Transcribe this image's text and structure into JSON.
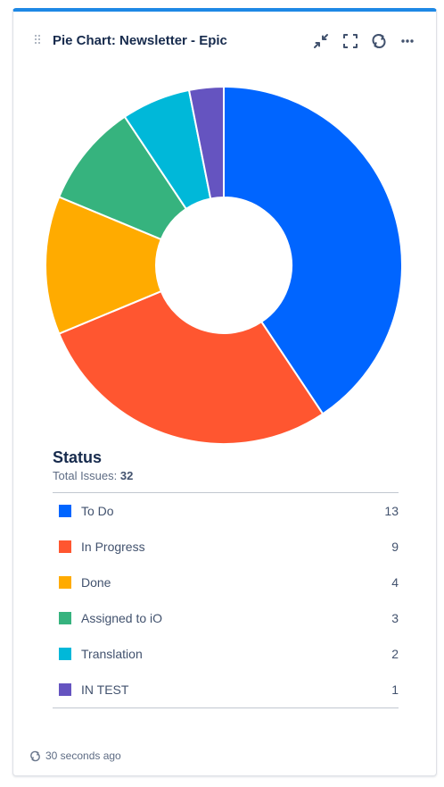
{
  "gadget": {
    "title": "Pie Chart: Newsletter - Epic",
    "actions": [
      {
        "name": "minimize-icon"
      },
      {
        "name": "fullscreen-icon"
      },
      {
        "name": "refresh-icon"
      },
      {
        "name": "more-icon"
      }
    ]
  },
  "chart_data": {
    "type": "pie",
    "style": "donut",
    "categories": [
      "To Do",
      "In Progress",
      "Done",
      "Assigned to iO",
      "Translation",
      "IN TEST"
    ],
    "values": [
      13,
      9,
      4,
      3,
      2,
      1
    ],
    "colors": [
      "#0065ff",
      "#ff5630",
      "#ffab00",
      "#36b37e",
      "#00b8d9",
      "#6554c0"
    ],
    "title": "Status",
    "total_label": "Total Issues:",
    "total": "32",
    "legend_position": "bottom"
  },
  "footer": {
    "updated": "30 seconds ago",
    "icon": "refresh-icon"
  }
}
